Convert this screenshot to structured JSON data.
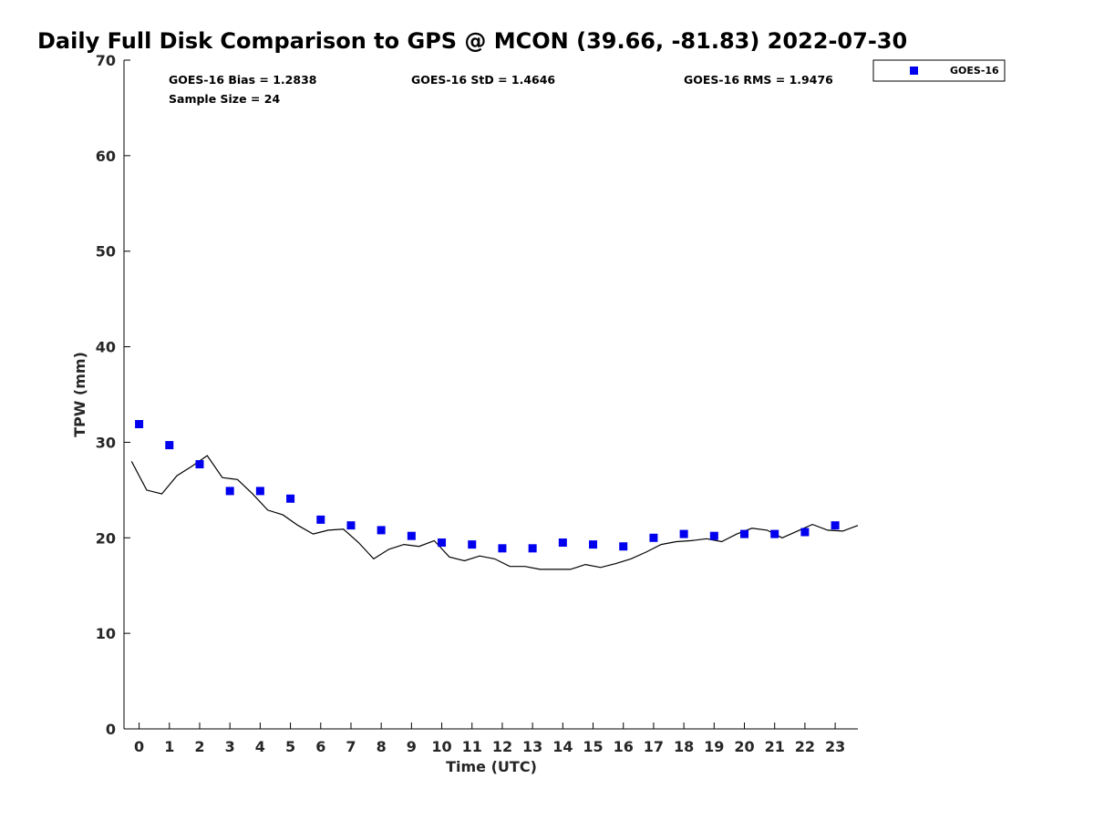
{
  "chart_data": {
    "type": "scatter",
    "title": "Daily Full Disk Comparison to GPS @ MCON (39.66, -81.83) 2022-07-30",
    "xlabel": "Time (UTC)",
    "ylabel": "TPW (mm)",
    "xlim": [
      -0.5,
      23.75
    ],
    "ylim": [
      0,
      70
    ],
    "xticks": [
      "0",
      "1",
      "2",
      "3",
      "4",
      "5",
      "6",
      "7",
      "8",
      "9",
      "10",
      "11",
      "12",
      "13",
      "14",
      "15",
      "16",
      "17",
      "18",
      "19",
      "20",
      "21",
      "22",
      "23"
    ],
    "yticks": [
      "0",
      "10",
      "20",
      "30",
      "40",
      "50",
      "60",
      "70"
    ],
    "grid": false,
    "legend": {
      "position": "top-right",
      "entries": [
        "GOES-16"
      ]
    },
    "stats": {
      "bias": "GOES-16 Bias = 1.2838",
      "std": "GOES-16 StD = 1.4646",
      "rms": "GOES-16 RMS = 1.9476",
      "sample": "Sample Size = 24"
    },
    "series": [
      {
        "name": "GOES-16",
        "kind": "scatter",
        "color": "#0000ee",
        "x": [
          0,
          1,
          2,
          3,
          4,
          5,
          6,
          7,
          8,
          9,
          10,
          11,
          12,
          13,
          14,
          15,
          16,
          17,
          18,
          19,
          20,
          21,
          22,
          23
        ],
        "y": [
          31.9,
          29.7,
          27.7,
          24.9,
          24.9,
          24.1,
          21.9,
          21.3,
          20.8,
          20.2,
          19.5,
          19.3,
          18.9,
          18.9,
          19.5,
          19.3,
          19.1,
          20.0,
          20.4,
          20.2,
          20.4,
          20.4,
          20.6,
          21.3
        ]
      },
      {
        "kind": "line",
        "color": "#000000",
        "x": [
          -0.25,
          0.25,
          0.75,
          1.25,
          1.75,
          2.25,
          2.75,
          3.25,
          3.75,
          4.25,
          4.75,
          5.25,
          5.75,
          6.25,
          6.75,
          7.25,
          7.75,
          8.25,
          8.75,
          9.25,
          9.75,
          10.25,
          10.75,
          11.25,
          11.75,
          12.25,
          12.75,
          13.25,
          13.75,
          14.25,
          14.75,
          15.25,
          15.75,
          16.25,
          16.75,
          17.25,
          17.75,
          18.25,
          18.75,
          19.25,
          19.75,
          20.25,
          20.75,
          21.25,
          21.75,
          22.25,
          22.75,
          23.25,
          23.75
        ],
        "y": [
          28.0,
          25.0,
          24.6,
          26.5,
          27.5,
          28.6,
          26.3,
          26.1,
          24.6,
          22.9,
          22.4,
          21.3,
          20.4,
          20.8,
          20.9,
          19.5,
          17.8,
          18.8,
          19.3,
          19.1,
          19.7,
          18.0,
          17.6,
          18.1,
          17.8,
          17.0,
          17.0,
          16.7,
          16.7,
          16.7,
          17.2,
          16.9,
          17.3,
          17.8,
          18.5,
          19.3,
          19.6,
          19.7,
          19.9,
          19.6,
          20.4,
          21.0,
          20.8,
          20.0,
          20.7,
          21.4,
          20.8,
          20.7,
          21.3
        ]
      }
    ]
  }
}
